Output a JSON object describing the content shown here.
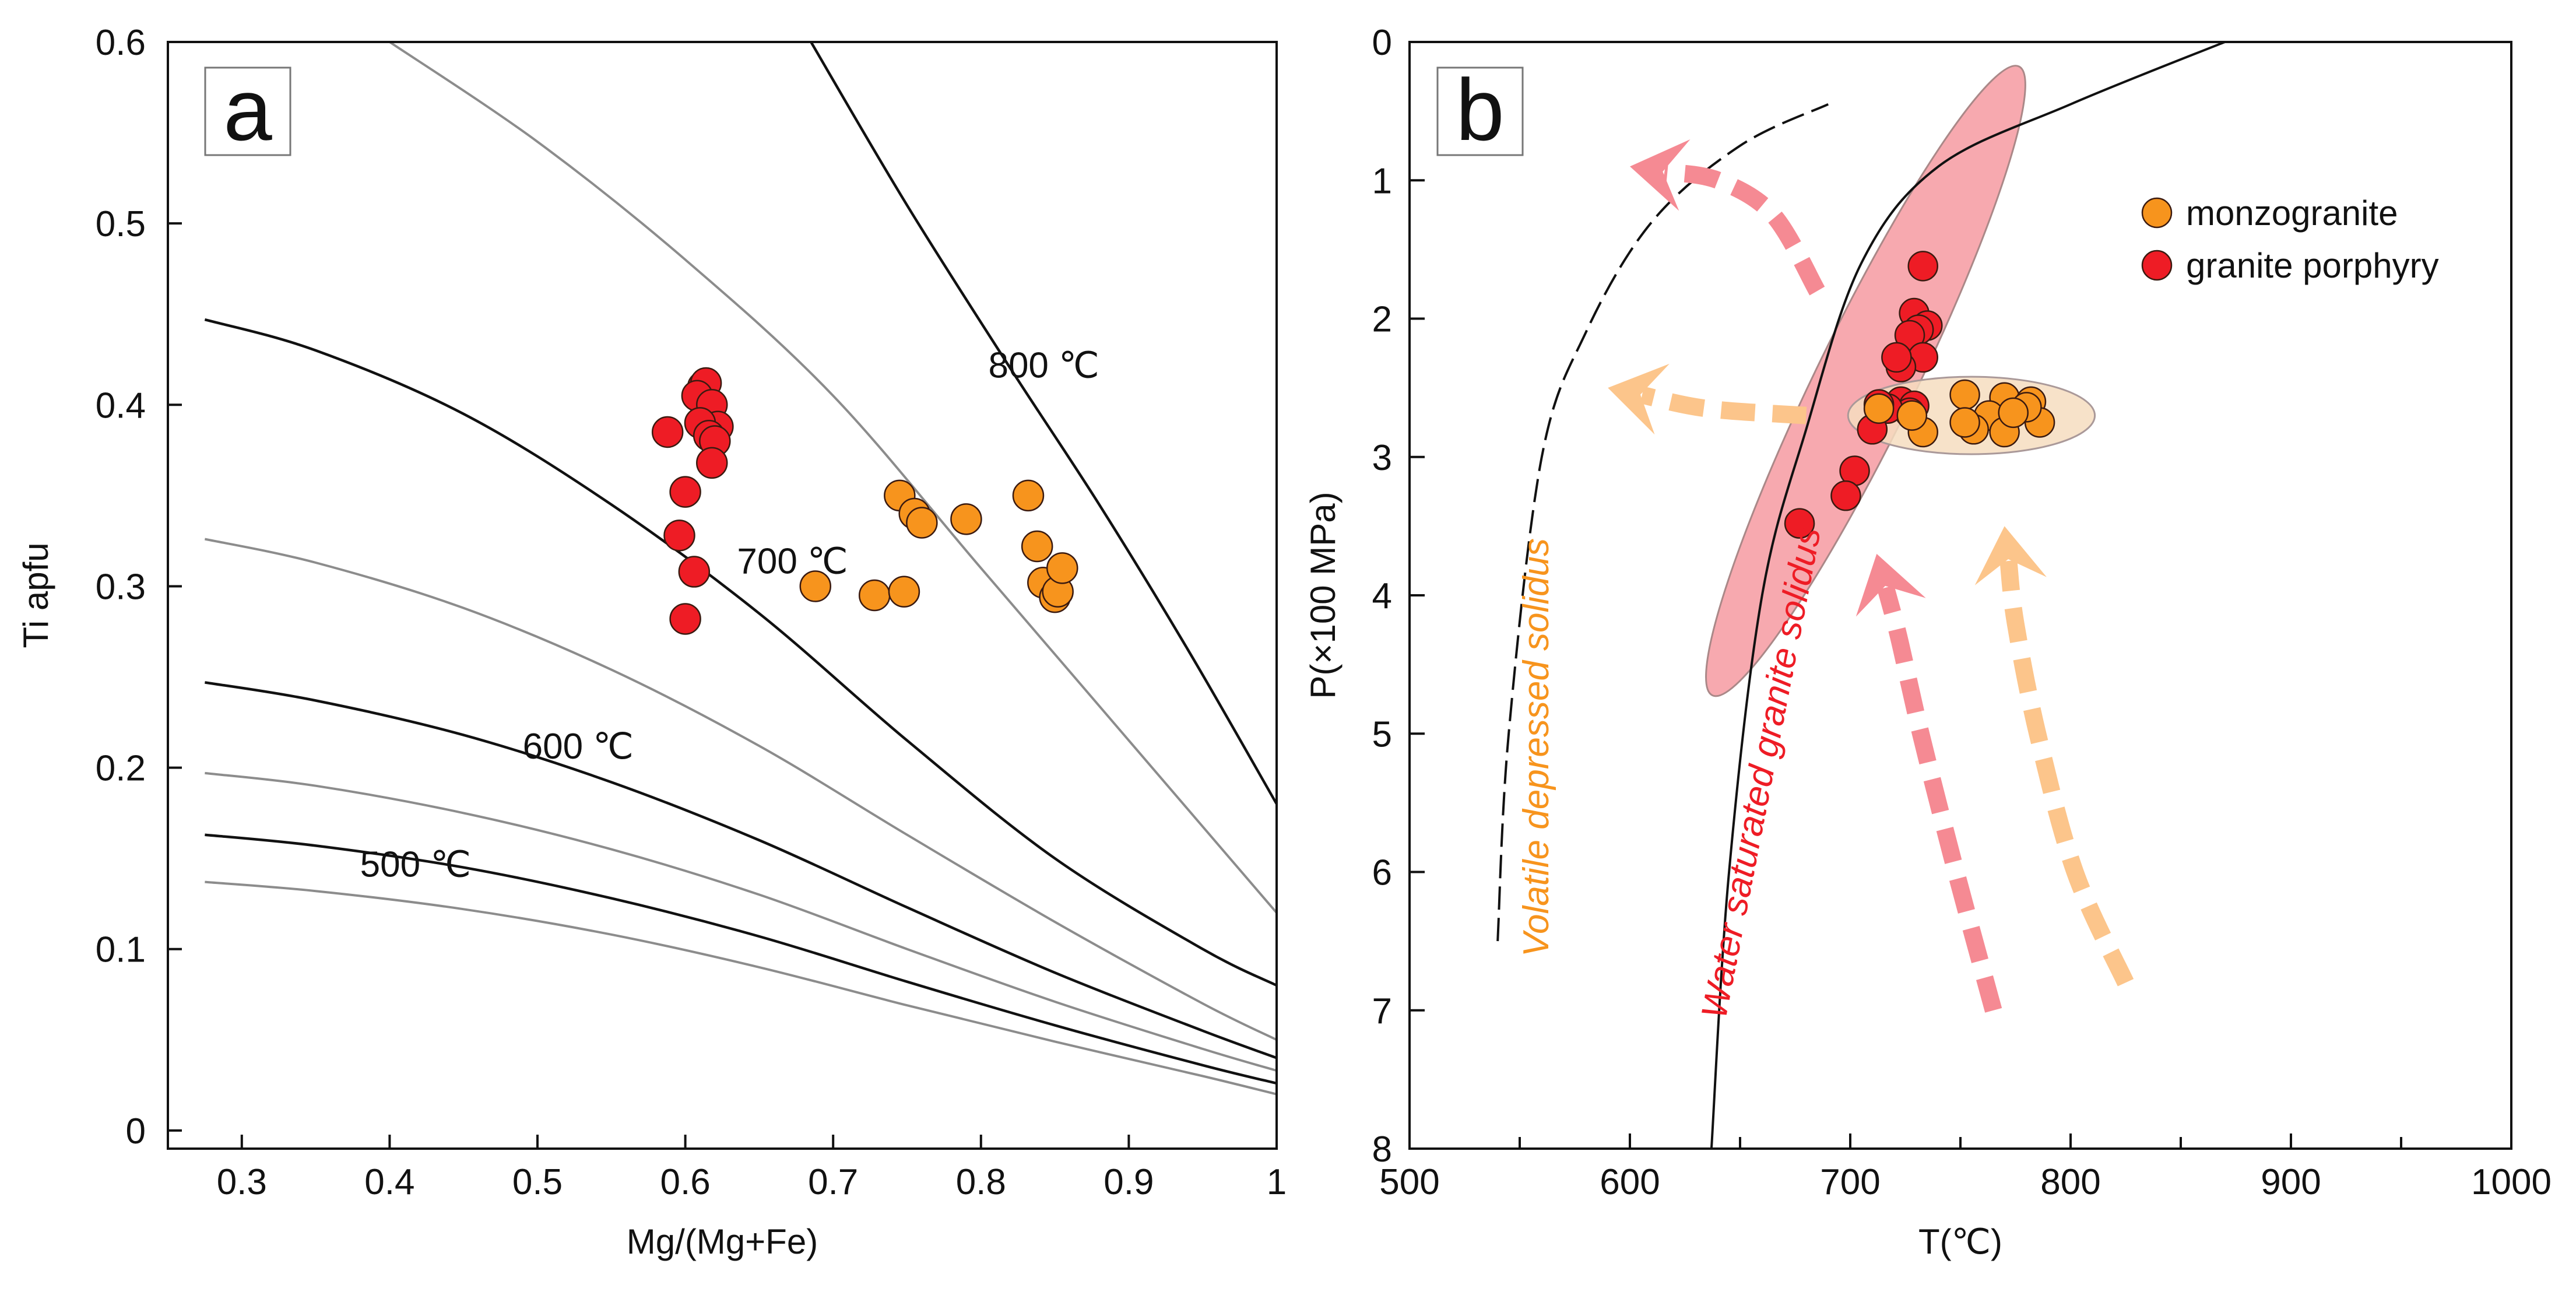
{
  "colors": {
    "red": "#ee1c25",
    "orange": "#f7941d",
    "red_arrow": "#f58a93",
    "orange_arrow": "#fcc58b",
    "gray_line": "#8c8c8c",
    "black": "#111111",
    "red_ellipse": "#f6a0a6",
    "orange_ellipse": "#f6ddc0"
  },
  "chart_data": [
    {
      "panel": "a",
      "type": "scatter",
      "panel_label": "a",
      "xlabel": "Mg/(Mg+Fe)",
      "ylabel": "Ti apfu",
      "xlim": [
        0.25,
        1.0
      ],
      "ylim": [
        -0.01,
        0.6
      ],
      "xticks": [
        0.3,
        0.4,
        0.5,
        0.6,
        0.7,
        0.8,
        0.9,
        1.0
      ],
      "xtick_labels": [
        "0.3",
        "0.4",
        "0.5",
        "0.6",
        "0.7",
        "0.8",
        "0.9",
        "1"
      ],
      "yticks": [
        0,
        0.1,
        0.2,
        0.3,
        0.4,
        0.5,
        0.6
      ],
      "ytick_labels": [
        "0",
        "0.1",
        "0.2",
        "0.3",
        "0.4",
        "0.5",
        "0.6"
      ],
      "isotherm_labels": [
        {
          "text": "800 ℃",
          "x": 0.805,
          "y": 0.415
        },
        {
          "text": "700 ℃",
          "x": 0.635,
          "y": 0.307
        },
        {
          "text": "600 ℃",
          "x": 0.49,
          "y": 0.205
        },
        {
          "text": "500 ℃",
          "x": 0.38,
          "y": 0.14
        }
      ],
      "curves": [
        {
          "name": "isotherm-800",
          "color": "black",
          "x": [
            0.685,
            0.75,
            0.82,
            0.88,
            0.94,
            1.0
          ],
          "y": [
            0.6,
            0.51,
            0.42,
            0.345,
            0.265,
            0.18
          ]
        },
        {
          "name": "isotherm-750",
          "color": "gray",
          "x": [
            0.4,
            0.5,
            0.6,
            0.7,
            0.8,
            0.9,
            1.0
          ],
          "y": [
            0.6,
            0.545,
            0.48,
            0.405,
            0.31,
            0.215,
            0.12
          ]
        },
        {
          "name": "isotherm-700",
          "color": "black",
          "x": [
            0.275,
            0.35,
            0.45,
            0.55,
            0.65,
            0.75,
            0.85,
            0.95,
            1.0
          ],
          "y": [
            0.447,
            0.43,
            0.395,
            0.345,
            0.285,
            0.215,
            0.15,
            0.1,
            0.08
          ]
        },
        {
          "name": "isotherm-650",
          "color": "gray",
          "x": [
            0.275,
            0.35,
            0.45,
            0.55,
            0.65,
            0.75,
            0.85,
            0.95,
            1.0
          ],
          "y": [
            0.326,
            0.313,
            0.288,
            0.254,
            0.212,
            0.163,
            0.115,
            0.07,
            0.05
          ]
        },
        {
          "name": "isotherm-600",
          "color": "black",
          "x": [
            0.275,
            0.35,
            0.45,
            0.55,
            0.65,
            0.75,
            0.85,
            0.95,
            1.0
          ],
          "y": [
            0.247,
            0.237,
            0.218,
            0.192,
            0.16,
            0.123,
            0.087,
            0.055,
            0.04
          ]
        },
        {
          "name": "isotherm-550",
          "color": "gray",
          "x": [
            0.275,
            0.35,
            0.45,
            0.55,
            0.65,
            0.75,
            0.85,
            0.95,
            1.0
          ],
          "y": [
            0.197,
            0.19,
            0.175,
            0.155,
            0.13,
            0.1,
            0.071,
            0.045,
            0.033
          ]
        },
        {
          "name": "isotherm-500",
          "color": "black",
          "x": [
            0.275,
            0.35,
            0.45,
            0.55,
            0.65,
            0.75,
            0.85,
            0.95,
            1.0
          ],
          "y": [
            0.163,
            0.157,
            0.145,
            0.128,
            0.107,
            0.082,
            0.058,
            0.036,
            0.026
          ]
        },
        {
          "name": "isotherm-450",
          "color": "gray",
          "x": [
            0.275,
            0.35,
            0.45,
            0.55,
            0.65,
            0.75,
            0.85,
            0.95,
            1.0
          ],
          "y": [
            0.137,
            0.132,
            0.122,
            0.108,
            0.09,
            0.069,
            0.049,
            0.03,
            0.02
          ]
        }
      ],
      "series": [
        {
          "name": "granite porphyry",
          "color": "red",
          "x": [
            0.612,
            0.614,
            0.608,
            0.618,
            0.622,
            0.588,
            0.61,
            0.616,
            0.62,
            0.618,
            0.6,
            0.596,
            0.606,
            0.6
          ],
          "y": [
            0.41,
            0.412,
            0.405,
            0.4,
            0.388,
            0.385,
            0.39,
            0.383,
            0.38,
            0.368,
            0.352,
            0.328,
            0.308,
            0.282
          ]
        },
        {
          "name": "monzogranite",
          "color": "orange",
          "x": [
            0.745,
            0.755,
            0.76,
            0.79,
            0.832,
            0.838,
            0.688,
            0.728,
            0.748,
            0.842,
            0.85,
            0.852,
            0.855
          ],
          "y": [
            0.35,
            0.34,
            0.335,
            0.337,
            0.35,
            0.322,
            0.3,
            0.295,
            0.297,
            0.302,
            0.294,
            0.297,
            0.31
          ]
        }
      ]
    },
    {
      "panel": "b",
      "type": "scatter",
      "panel_label": "b",
      "xlabel": "T(℃)",
      "ylabel": "P(×100 MPa)",
      "xlim": [
        500,
        1000
      ],
      "ylim": [
        8,
        0
      ],
      "xticks": [
        500,
        600,
        700,
        800,
        900,
        1000
      ],
      "xtick_labels": [
        "500",
        "600",
        "700",
        "800",
        "900",
        "1000"
      ],
      "xminor": [
        550,
        650,
        750,
        850,
        950
      ],
      "yticks": [
        0,
        1,
        2,
        3,
        4,
        5,
        6,
        7,
        8
      ],
      "ytick_labels": [
        "0",
        "1",
        "2",
        "3",
        "4",
        "5",
        "6",
        "7",
        "8"
      ],
      "legend": {
        "position": "top-right",
        "entries": [
          "monzogranite",
          "granite porphyry"
        ]
      },
      "annotations": [
        {
          "text": "Volatile depressed solidus",
          "color": "orange",
          "x": 563,
          "y": 5.1,
          "rotation": -90
        },
        {
          "text": "Water saturated granite solidus",
          "color": "red",
          "x": 665,
          "y": 5.3,
          "rotation": -79
        }
      ],
      "curves": [
        {
          "name": "water-saturated-solidus",
          "style": "solid",
          "T": [
            637,
            645,
            660,
            680,
            705,
            740,
            800,
            870
          ],
          "P": [
            8,
            6.0,
            4.0,
            2.8,
            1.6,
            0.9,
            0.45,
            0
          ]
        },
        {
          "name": "volatile-depressed-solidus",
          "style": "dashed",
          "T": [
            540,
            545,
            560,
            580,
            610,
            650,
            690
          ],
          "P": [
            6.5,
            5.0,
            3.0,
            2.1,
            1.3,
            0.75,
            0.45
          ]
        }
      ],
      "ellipses": [
        {
          "name": "granite-porphyry-field",
          "color": "red",
          "cx": 707,
          "cy": 2.45,
          "rx": 10.6,
          "ry": 1.05,
          "angle": 26
        },
        {
          "name": "monzogranite-field",
          "color": "orange",
          "cx": 755,
          "cy": 2.7,
          "rx": 56,
          "ry": 0.28,
          "angle": 0
        }
      ],
      "arrows": [
        {
          "name": "arrow-red-upper",
          "color": "red",
          "T": [
            685,
            665,
            640,
            600
          ],
          "P": [
            1.8,
            1.25,
            1.0,
            0.9
          ]
        },
        {
          "name": "arrow-orange-left",
          "color": "orange",
          "T": [
            680,
            635,
            590
          ],
          "P": [
            2.7,
            2.65,
            2.5
          ]
        },
        {
          "name": "arrow-red-lower",
          "color": "red",
          "T": [
            765,
            748,
            732,
            722,
            712
          ],
          "P": [
            7.0,
            6.0,
            5.0,
            4.3,
            3.7
          ]
        },
        {
          "name": "arrow-orange-lower",
          "color": "orange",
          "T": [
            825,
            802,
            785,
            775,
            770
          ],
          "P": [
            6.8,
            6.0,
            5.0,
            4.2,
            3.5
          ]
        }
      ],
      "series": [
        {
          "name": "granite porphyry",
          "color": "red",
          "T": [
            733,
            729,
            735,
            731,
            727,
            733,
            723,
            721,
            723,
            729,
            727,
            717,
            713,
            710,
            702,
            698,
            677
          ],
          "P": [
            1.62,
            1.96,
            2.05,
            2.08,
            2.12,
            2.28,
            2.35,
            2.28,
            2.6,
            2.63,
            2.68,
            2.65,
            2.62,
            2.8,
            3.1,
            3.28,
            3.48
          ]
        },
        {
          "name": "monzogranite",
          "color": "orange",
          "T": [
            752,
            770,
            782,
            786,
            763,
            756,
            770,
            780,
            774,
            752,
            733,
            713,
            728
          ],
          "P": [
            2.55,
            2.57,
            2.6,
            2.75,
            2.7,
            2.8,
            2.82,
            2.64,
            2.68,
            2.75,
            2.82,
            2.65,
            2.7
          ]
        }
      ]
    }
  ]
}
